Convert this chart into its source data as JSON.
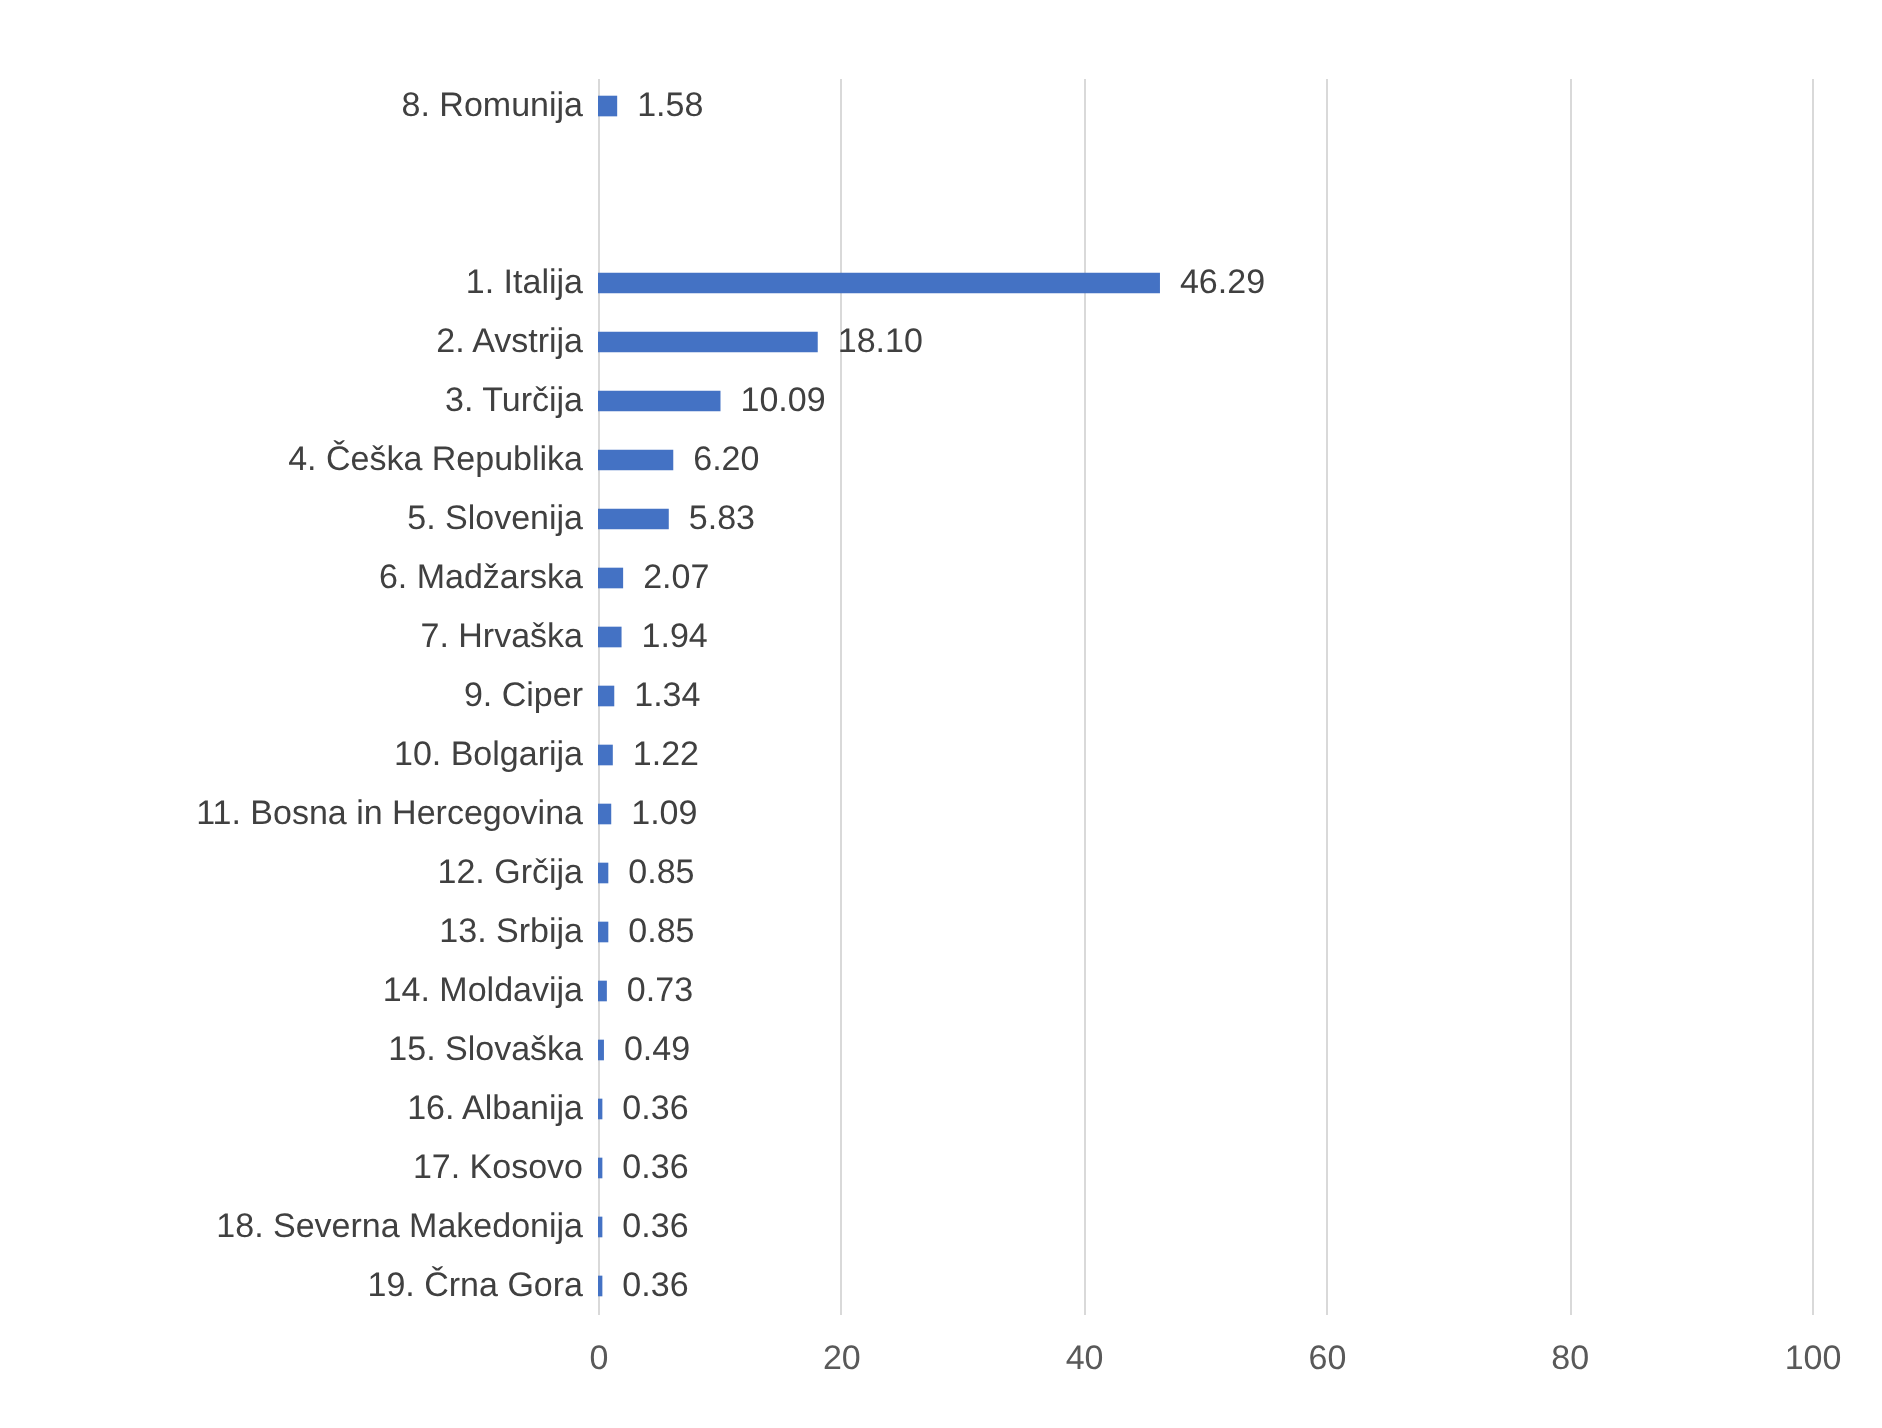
{
  "chart_data": {
    "type": "bar",
    "orientation": "horizontal",
    "categories": [
      "8. Romunija",
      null,
      null,
      "1. Italija",
      "2. Avstrija",
      "3. Turčija",
      "4. Češka Republika",
      "5. Slovenija",
      "6. Madžarska",
      "7. Hrvaška",
      "9. Ciper",
      "10. Bolgarija",
      "11. Bosna in Hercegovina",
      "12. Grčija",
      "13. Srbija",
      "14. Moldavija",
      "15. Slovaška",
      "16. Albanija",
      "17. Kosovo",
      "18. Severna Makedonija",
      "19. Črna Gora"
    ],
    "values": [
      1.58,
      null,
      null,
      46.29,
      18.1,
      10.09,
      6.2,
      5.83,
      2.07,
      1.94,
      1.34,
      1.22,
      1.09,
      0.85,
      0.85,
      0.73,
      0.49,
      0.36,
      0.36,
      0.36,
      0.36
    ],
    "value_labels": [
      "1.58",
      null,
      null,
      "46.29",
      "18.10",
      "10.09",
      "6.20",
      "5.83",
      "2.07",
      "1.94",
      "1.34",
      "1.22",
      "1.09",
      "0.85",
      "0.85",
      "0.73",
      "0.49",
      "0.36",
      "0.36",
      "0.36",
      "0.36"
    ],
    "color": "#4472c4",
    "xlim": [
      0,
      100
    ],
    "xticks": [
      0,
      20,
      40,
      60,
      80,
      100
    ],
    "grid": "x"
  }
}
